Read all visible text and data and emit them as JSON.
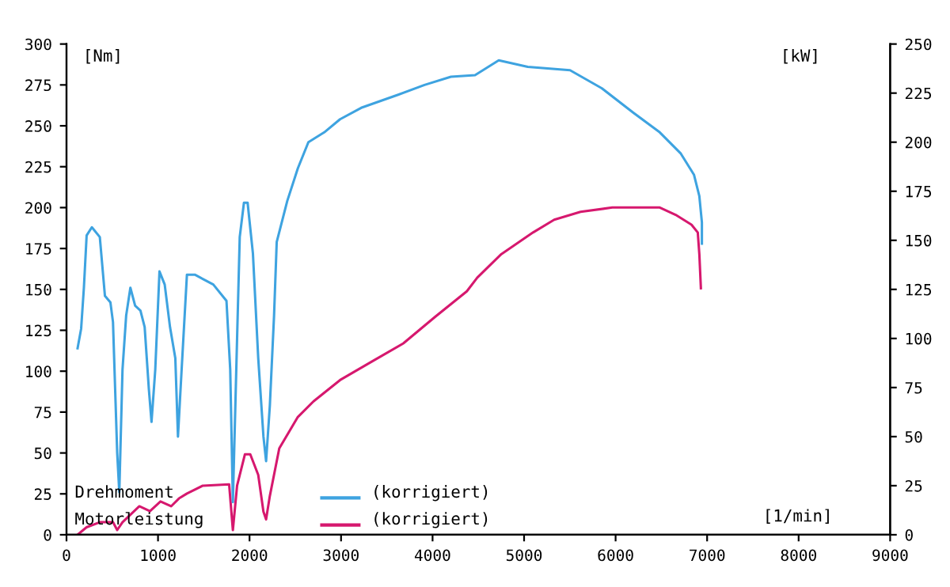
{
  "chart_data": {
    "type": "line",
    "ylabel": "[Nm]",
    "y2label": "[kW]",
    "xlabel": "[1/min]",
    "xlim": [
      0,
      9000
    ],
    "xticks": [
      0,
      1000,
      2000,
      3000,
      4000,
      5000,
      6000,
      7000,
      8000,
      9000
    ],
    "ylim": [
      0,
      300
    ],
    "yticks": [
      0,
      25,
      50,
      75,
      100,
      125,
      150,
      175,
      200,
      225,
      250,
      275,
      300
    ],
    "y2lim": [
      0,
      250
    ],
    "y2ticks": [
      0,
      25,
      50,
      75,
      100,
      125,
      150,
      175,
      200,
      225,
      250
    ],
    "grid": false,
    "legend": "bottom left",
    "annotations": [
      "(korrigiert)",
      "(korrigiert)"
    ],
    "series": [
      {
        "name": "Drehmoment",
        "color": "#3ea3e0",
        "x": [
          121,
          160,
          190,
          220,
          277,
          364,
          420,
          480,
          508,
          554,
          577,
          612,
          652,
          698,
          750,
          808,
          854,
          900,
          929,
          970,
          1016,
          1073,
          1131,
          1189,
          1218,
          1258,
          1316,
          1402,
          1604,
          1748,
          1789,
          1818,
          1864,
          1893,
          1939,
          1979,
          2037,
          2095,
          2152,
          2181,
          2222,
          2268,
          2297,
          2412,
          2528,
          2643,
          2816,
          2989,
          3220,
          3624,
          3912,
          4201,
          4464,
          4723,
          5040,
          5502,
          5848,
          6194,
          6483,
          6713,
          6857,
          6915,
          6943,
          6943
        ],
        "values": [
          114,
          126,
          151,
          183,
          188,
          182,
          146,
          142,
          130,
          50,
          26,
          101,
          134,
          151,
          140,
          137,
          127,
          89,
          69,
          101,
          161,
          153,
          127,
          108,
          60,
          101,
          159,
          159,
          153,
          143,
          101,
          20,
          120,
          182,
          203,
          203,
          172,
          108,
          60,
          45,
          79,
          134,
          179,
          204,
          224,
          240,
          246,
          254,
          261,
          269,
          275,
          280,
          281,
          290,
          286,
          284,
          273,
          258,
          246,
          233,
          220,
          207,
          191,
          178
        ]
      },
      {
        "name": "Motorleistung",
        "color": "#d6186e",
        "axis": "y2",
        "x": [
          121,
          219,
          364,
          508,
          554,
          612,
          796,
          912,
          1027,
          1143,
          1229,
          1316,
          1489,
          1777,
          1818,
          1864,
          1950,
          2008,
          2095,
          2152,
          2181,
          2222,
          2325,
          2528,
          2700,
          2989,
          3335,
          3681,
          4028,
          4374,
          4489,
          4752,
          5098,
          5329,
          5617,
          5964,
          6483,
          6656,
          6829,
          6898,
          6915,
          6932
        ],
        "values": [
          0,
          3.8,
          6.4,
          6.4,
          2.4,
          6.4,
          14.5,
          12,
          17,
          14.5,
          18.5,
          21,
          25,
          25.7,
          2.4,
          25,
          41,
          41,
          30.5,
          11.8,
          7.8,
          19.8,
          44,
          60,
          68,
          78.8,
          88.2,
          97.5,
          111,
          124,
          131,
          143,
          154,
          160.5,
          164.5,
          166.7,
          166.7,
          163,
          158,
          154,
          143,
          125.6
        ]
      }
    ]
  }
}
